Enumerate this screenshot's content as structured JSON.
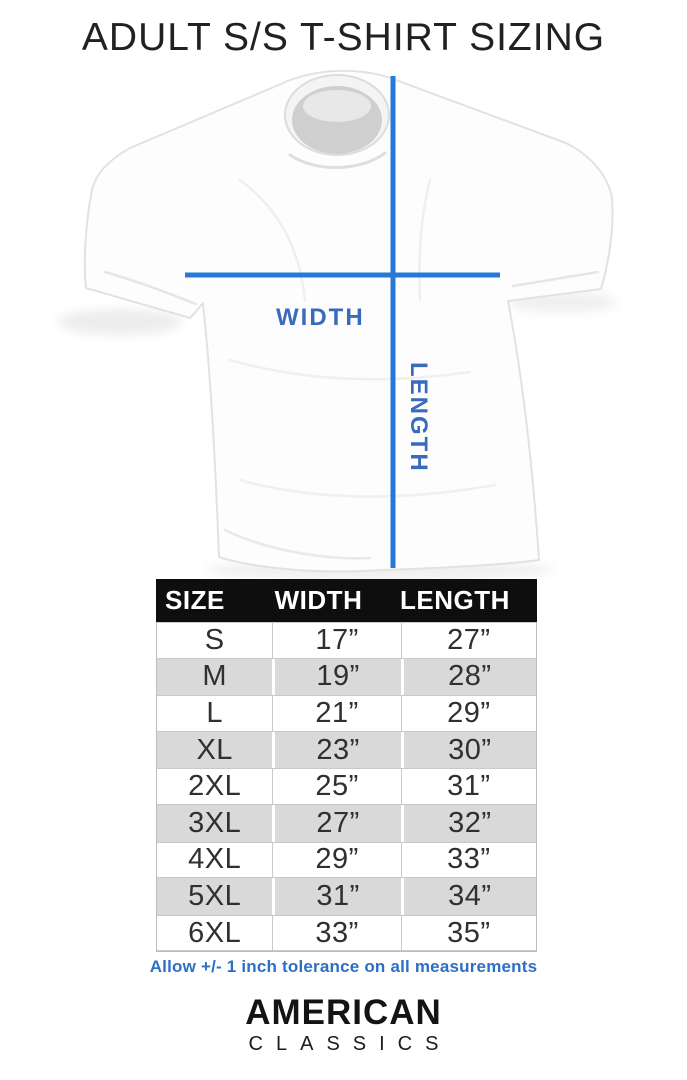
{
  "title": "ADULT S/S T-SHIRT SIZING",
  "diagram": {
    "width_label": "WIDTH",
    "length_label": "LENGTH",
    "line_color": "#2878d8",
    "label_color": "#3a6abe"
  },
  "table": {
    "headers": [
      "SIZE",
      "WIDTH",
      "LENGTH"
    ],
    "rows": [
      {
        "size": "S",
        "width": "17”",
        "length": "27”"
      },
      {
        "size": "M",
        "width": "19”",
        "length": "28”"
      },
      {
        "size": "L",
        "width": "21”",
        "length": "29”"
      },
      {
        "size": "XL",
        "width": "23”",
        "length": "30”"
      },
      {
        "size": "2XL",
        "width": "25”",
        "length": "31”"
      },
      {
        "size": "3XL",
        "width": "27”",
        "length": "32”"
      },
      {
        "size": "4XL",
        "width": "29”",
        "length": "33”"
      },
      {
        "size": "5XL",
        "width": "31”",
        "length": "34”"
      },
      {
        "size": "6XL",
        "width": "33”",
        "length": "35”"
      }
    ],
    "header_bg": "#0e0e0e",
    "alt_row_bg": "#d9d9d9"
  },
  "footnote": "Allow +/- 1 inch tolerance on all measurements",
  "brand": {
    "line1": "AMERICAN",
    "line2": "CLASSICS"
  },
  "chart_data": {
    "type": "table",
    "title": "ADULT S/S T-SHIRT SIZING",
    "columns": [
      "SIZE",
      "WIDTH",
      "LENGTH"
    ],
    "rows": [
      [
        "S",
        "17”",
        "27”"
      ],
      [
        "M",
        "19”",
        "28”"
      ],
      [
        "L",
        "21”",
        "29”"
      ],
      [
        "XL",
        "23”",
        "30”"
      ],
      [
        "2XL",
        "25”",
        "31”"
      ],
      [
        "3XL",
        "27”",
        "32”"
      ],
      [
        "4XL",
        "29”",
        "33”"
      ],
      [
        "5XL",
        "31”",
        "34”"
      ],
      [
        "6XL",
        "33”",
        "35”"
      ]
    ],
    "footnote": "Allow +/- 1 inch tolerance on all measurements"
  }
}
